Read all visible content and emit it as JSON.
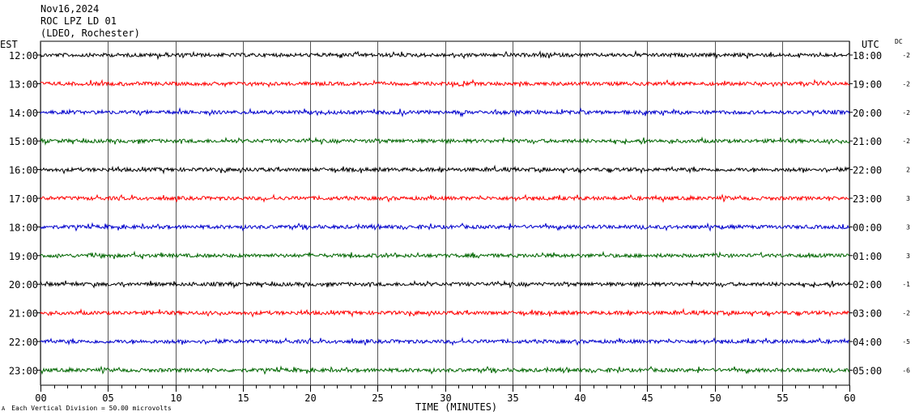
{
  "header": {
    "date": "Nov16,2024",
    "station": "ROC LPZ LD 01",
    "network": "(LDEO, Rochester)"
  },
  "axes": {
    "left_label": "EST",
    "right_label": "UTC",
    "dc_label": "DC",
    "xlabel": "TIME (MINUTES)",
    "scale_note": "Each Vertical Division =   50.00 microvolts",
    "corner_mark": "A"
  },
  "colors": {
    "trace_cycle": [
      "#000000",
      "#ff0000",
      "#0000cc",
      "#006600"
    ],
    "grid": "#000000",
    "background": "#ffffff"
  },
  "chart_data": {
    "type": "line",
    "title": "",
    "xlabel": "TIME (MINUTES)",
    "xlim": [
      0,
      60
    ],
    "x_ticks": [
      "00",
      "05",
      "10",
      "15",
      "20",
      "25",
      "30",
      "35",
      "40",
      "45",
      "50",
      "55",
      "60"
    ],
    "grid": true,
    "rows": [
      {
        "est": "12:00",
        "utc": "18:00",
        "dc": "-2"
      },
      {
        "est": "13:00",
        "utc": "19:00",
        "dc": "-2"
      },
      {
        "est": "14:00",
        "utc": "20:00",
        "dc": "-2"
      },
      {
        "est": "15:00",
        "utc": "21:00",
        "dc": "-2"
      },
      {
        "est": "16:00",
        "utc": "22:00",
        "dc": "2"
      },
      {
        "est": "17:00",
        "utc": "23:00",
        "dc": "3"
      },
      {
        "est": "18:00",
        "utc": "00:00",
        "dc": "3"
      },
      {
        "est": "19:00",
        "utc": "01:00",
        "dc": "3"
      },
      {
        "est": "20:00",
        "utc": "02:00",
        "dc": "-1"
      },
      {
        "est": "21:00",
        "utc": "03:00",
        "dc": "-2"
      },
      {
        "est": "22:00",
        "utc": "04:00",
        "dc": "-5"
      },
      {
        "est": "23:00",
        "utc": "05:00",
        "dc": "-6"
      }
    ]
  }
}
